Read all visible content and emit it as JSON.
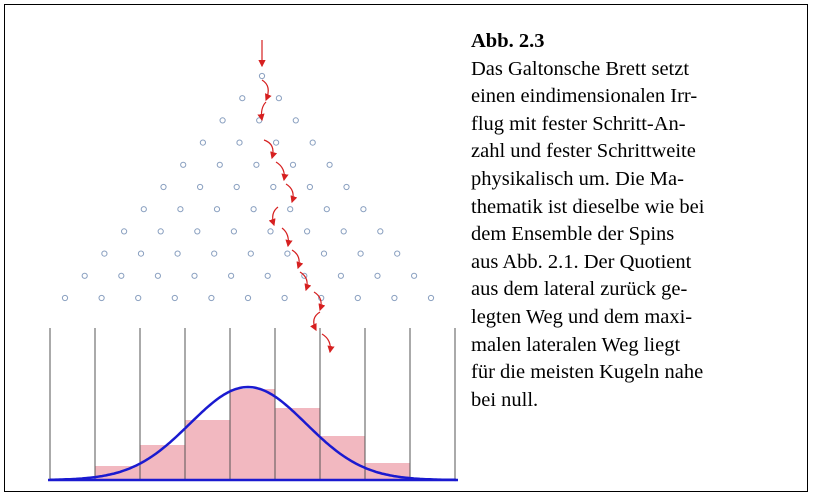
{
  "figure": {
    "label": "Abb. 2.3",
    "caption_lines": [
      "Das Galtonsche Brett setzt",
      "einen eindimensionalen Irr-",
      "flug mit fester Schritt-An-",
      "zahl und fester Schrittweite",
      "physikalisch um.  Die Ma-",
      "thematik ist dieselbe wie bei",
      "dem Ensemble der Spins",
      "aus Abb. 2.1.  Der Quotient",
      "aus dem lateral zurück ge-",
      "legten Weg und dem maxi-",
      "malen lateralen Weg liegt",
      "für die meisten Kugeln nahe",
      "bei null."
    ]
  }
}
